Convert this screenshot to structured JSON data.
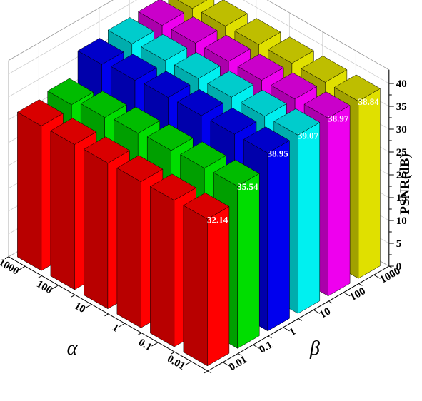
{
  "chart_data": {
    "type": "bar3d",
    "x_axis": {
      "symbol": "α",
      "ticks": [
        "0.01",
        "0.1",
        "1",
        "10",
        "100",
        "1000"
      ]
    },
    "y_axis": {
      "symbol": "β",
      "ticks": [
        "0.01",
        "0.1",
        "1",
        "10",
        "100",
        "1000"
      ]
    },
    "z_axis": {
      "label": "PSNR(dB)",
      "ticks": [
        "0",
        "5",
        "10",
        "15",
        "20",
        "25",
        "30",
        "35",
        "40"
      ],
      "range": [
        0,
        40
      ]
    },
    "colors_by_beta": [
      "#ff0000",
      "#00dd00",
      "#0000ee",
      "#00f0f0",
      "#ee00ee",
      "#e0e000"
    ],
    "values": [
      [
        32.14,
        32.1,
        32.0,
        31.9,
        31.8,
        31.7
      ],
      [
        35.54,
        35.3,
        35.0,
        34.6,
        33.9,
        32.5
      ],
      [
        38.95,
        38.9,
        38.8,
        38.6,
        38.2,
        37.5
      ],
      [
        39.07,
        39.0,
        39.0,
        38.9,
        38.7,
        38.2
      ],
      [
        38.97,
        38.95,
        38.9,
        38.85,
        38.7,
        38.4
      ],
      [
        38.84,
        38.8,
        38.8,
        38.7,
        38.6,
        38.3
      ]
    ],
    "data_labels": [
      {
        "alpha": "0.01",
        "beta": "0.01",
        "text": "32.14"
      },
      {
        "alpha": "0.01",
        "beta": "0.1",
        "text": "35.54"
      },
      {
        "alpha": "0.01",
        "beta": "1",
        "text": "38.95"
      },
      {
        "alpha": "0.01",
        "beta": "10",
        "text": "39.07"
      },
      {
        "alpha": "0.01",
        "beta": "100",
        "text": "38.97"
      },
      {
        "alpha": "0.01",
        "beta": "1000",
        "text": "38.84"
      }
    ],
    "grid": true
  }
}
